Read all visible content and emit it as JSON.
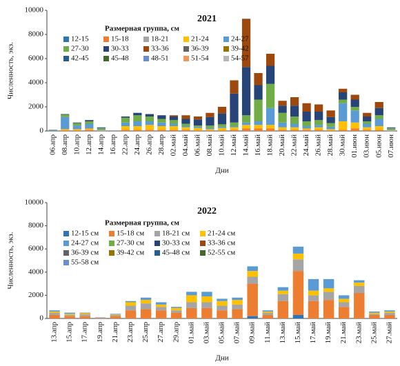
{
  "chart_data": [
    {
      "type": "stacked_bar",
      "title": "2021",
      "legend_title": "Размерная группа, см",
      "x_label": "Дни",
      "y_label": "Численность, экз.",
      "categories": [
        "06.апр",
        "08.апр",
        "10.апр",
        "12.апр",
        "14.апр",
        "16.апр",
        "22.апр",
        "24.апр",
        "26.апр",
        "28.апр",
        "02.май",
        "04.май",
        "06.май",
        "08.май",
        "10.май",
        "12.май",
        "14.май",
        "16.май",
        "18.май",
        "20.май",
        "22.май",
        "24.май",
        "26.май",
        "28.май",
        "30.май",
        "01.июн",
        "03.июн",
        "05.июн",
        "07.июн"
      ],
      "ylim": [
        0,
        10000
      ],
      "yticks": [
        0,
        2000,
        4000,
        6000,
        8000,
        10000
      ],
      "series": [
        {
          "name": "12-15",
          "color": "#2e75b6",
          "values": [
            0,
            0,
            0,
            0,
            0,
            0,
            0,
            0,
            0,
            0,
            0,
            0,
            0,
            0,
            0,
            0,
            0,
            0,
            0,
            0,
            0,
            0,
            0,
            0,
            0,
            0,
            0,
            0,
            0
          ]
        },
        {
          "name": "15-18",
          "color": "#ed7d31",
          "values": [
            0,
            50,
            50,
            100,
            0,
            0,
            100,
            100,
            100,
            100,
            100,
            100,
            50,
            50,
            50,
            100,
            200,
            200,
            200,
            100,
            100,
            100,
            100,
            50,
            100,
            200,
            100,
            100,
            0
          ]
        },
        {
          "name": "18-21",
          "color": "#a5a5a5",
          "values": [
            0,
            0,
            0,
            0,
            0,
            0,
            0,
            0,
            0,
            0,
            0,
            0,
            0,
            0,
            0,
            0,
            0,
            0,
            0,
            0,
            0,
            0,
            0,
            0,
            0,
            0,
            0,
            0,
            0
          ]
        },
        {
          "name": "21-24",
          "color": "#ffc000",
          "values": [
            0,
            100,
            100,
            100,
            50,
            0,
            300,
            300,
            400,
            300,
            300,
            200,
            200,
            100,
            200,
            200,
            300,
            300,
            300,
            200,
            200,
            100,
            200,
            100,
            700,
            500,
            200,
            300,
            50
          ]
        },
        {
          "name": "24-27",
          "color": "#5b9bd5",
          "values": [
            50,
            1000,
            300,
            400,
            100,
            0,
            300,
            400,
            300,
            300,
            200,
            100,
            100,
            100,
            100,
            100,
            200,
            300,
            1400,
            400,
            300,
            200,
            200,
            200,
            1500,
            1000,
            300,
            600,
            100
          ]
        },
        {
          "name": "27-30",
          "color": "#70ad47",
          "values": [
            30,
            200,
            200,
            200,
            100,
            0,
            400,
            500,
            400,
            300,
            300,
            200,
            100,
            200,
            200,
            300,
            600,
            1800,
            2000,
            800,
            600,
            400,
            400,
            300,
            300,
            300,
            200,
            300,
            100
          ]
        },
        {
          "name": "30-33",
          "color": "#264478",
          "values": [
            20,
            50,
            50,
            100,
            50,
            0,
            100,
            200,
            200,
            300,
            300,
            400,
            500,
            700,
            900,
            2400,
            4000,
            1200,
            1500,
            600,
            900,
            800,
            700,
            500,
            600,
            600,
            400,
            600,
            50
          ]
        },
        {
          "name": "33-36",
          "color": "#9e480e",
          "values": [
            0,
            0,
            0,
            0,
            0,
            0,
            0,
            0,
            0,
            0,
            100,
            300,
            250,
            350,
            550,
            1100,
            4000,
            1000,
            1000,
            400,
            700,
            700,
            600,
            550,
            300,
            400,
            300,
            500,
            0
          ]
        },
        {
          "name": "36-39",
          "color": "#636363",
          "values": [
            0,
            0,
            0,
            0,
            0,
            0,
            0,
            0,
            0,
            0,
            0,
            0,
            0,
            0,
            0,
            0,
            0,
            0,
            0,
            0,
            0,
            0,
            0,
            0,
            0,
            0,
            0,
            0,
            0
          ]
        },
        {
          "name": "39-42",
          "color": "#997300",
          "values": [
            0,
            0,
            0,
            0,
            0,
            0,
            0,
            0,
            0,
            0,
            0,
            0,
            0,
            0,
            0,
            0,
            0,
            0,
            0,
            0,
            0,
            0,
            0,
            0,
            0,
            0,
            0,
            0,
            0
          ]
        },
        {
          "name": "42-45",
          "color": "#255e91",
          "values": [
            0,
            0,
            0,
            0,
            0,
            0,
            0,
            0,
            0,
            0,
            0,
            0,
            0,
            0,
            0,
            0,
            0,
            0,
            0,
            0,
            0,
            0,
            0,
            0,
            0,
            0,
            0,
            0,
            0
          ]
        },
        {
          "name": "45-48",
          "color": "#43682b",
          "values": [
            0,
            0,
            0,
            0,
            0,
            0,
            0,
            0,
            0,
            0,
            0,
            0,
            0,
            0,
            0,
            0,
            0,
            0,
            0,
            0,
            0,
            0,
            0,
            0,
            0,
            0,
            0,
            0,
            0
          ]
        },
        {
          "name": "48-51",
          "color": "#698ed0",
          "values": [
            0,
            0,
            0,
            0,
            0,
            0,
            0,
            0,
            0,
            0,
            0,
            0,
            0,
            0,
            0,
            0,
            0,
            0,
            0,
            0,
            0,
            0,
            0,
            0,
            0,
            0,
            0,
            0,
            0
          ]
        },
        {
          "name": "51-54",
          "color": "#f1975a",
          "values": [
            0,
            0,
            0,
            0,
            0,
            0,
            0,
            0,
            0,
            0,
            0,
            0,
            0,
            0,
            0,
            0,
            0,
            0,
            0,
            0,
            0,
            0,
            0,
            0,
            0,
            0,
            0,
            0,
            0
          ]
        },
        {
          "name": "54-57",
          "color": "#b7b7b7",
          "values": [
            0,
            0,
            0,
            0,
            0,
            0,
            0,
            0,
            0,
            0,
            0,
            0,
            0,
            0,
            0,
            0,
            0,
            0,
            0,
            0,
            0,
            0,
            0,
            0,
            0,
            0,
            0,
            0,
            0
          ]
        }
      ]
    },
    {
      "type": "stacked_bar",
      "title": "2022",
      "legend_title": "Размерная группа, см",
      "x_label": "Дни",
      "y_label": "Численность, экз.",
      "categories": [
        "13.апр",
        "15.апр",
        "17.апр",
        "19.апр",
        "21.апр",
        "23.апр",
        "25.апр",
        "27.апр",
        "29.апр",
        "01.май",
        "03.май",
        "05.май",
        "07.май",
        "09.май",
        "11.май",
        "13.май",
        "15.май",
        "17.май",
        "19.май",
        "21.май",
        "23.май",
        "25.май",
        "27.май"
      ],
      "ylim": [
        0,
        10000
      ],
      "yticks": [
        0,
        2000,
        4000,
        6000,
        8000,
        10000
      ],
      "series": [
        {
          "name": "12-15 см",
          "color": "#2e75b6",
          "values": [
            0,
            0,
            0,
            0,
            0,
            0,
            0,
            0,
            0,
            0,
            0,
            0,
            0,
            200,
            0,
            0,
            300,
            0,
            0,
            0,
            0,
            0,
            0
          ]
        },
        {
          "name": "15-18 см",
          "color": "#ed7d31",
          "values": [
            300,
            200,
            200,
            50,
            200,
            700,
            800,
            700,
            500,
            900,
            900,
            700,
            800,
            2800,
            300,
            1500,
            3800,
            1500,
            1600,
            1000,
            2200,
            300,
            300
          ]
        },
        {
          "name": "18-21 см",
          "color": "#a5a5a5",
          "values": [
            200,
            100,
            150,
            30,
            100,
            400,
            500,
            300,
            200,
            500,
            500,
            400,
            400,
            600,
            200,
            600,
            1000,
            500,
            700,
            400,
            600,
            100,
            200
          ]
        },
        {
          "name": "21-24 см",
          "color": "#ffc000",
          "values": [
            100,
            100,
            100,
            0,
            50,
            300,
            300,
            200,
            200,
            600,
            500,
            400,
            400,
            500,
            100,
            300,
            500,
            400,
            300,
            300,
            300,
            100,
            100
          ]
        },
        {
          "name": "24-27 см",
          "color": "#5b9bd5",
          "values": [
            100,
            100,
            50,
            20,
            50,
            100,
            200,
            200,
            100,
            300,
            400,
            200,
            200,
            400,
            100,
            300,
            600,
            1000,
            800,
            300,
            200,
            100,
            100
          ]
        },
        {
          "name": "27-30 см",
          "color": "#70ad47",
          "values": [
            0,
            0,
            0,
            0,
            0,
            0,
            0,
            0,
            0,
            0,
            0,
            0,
            0,
            0,
            0,
            0,
            0,
            0,
            0,
            0,
            0,
            0,
            0
          ]
        },
        {
          "name": "30-33 см",
          "color": "#264478",
          "values": [
            0,
            0,
            0,
            0,
            0,
            0,
            0,
            0,
            0,
            0,
            0,
            0,
            0,
            0,
            0,
            0,
            0,
            0,
            0,
            0,
            0,
            0,
            0
          ]
        },
        {
          "name": "33-36 см",
          "color": "#9e480e",
          "values": [
            0,
            0,
            0,
            0,
            0,
            0,
            0,
            0,
            0,
            0,
            0,
            0,
            0,
            0,
            0,
            0,
            0,
            0,
            0,
            0,
            0,
            0,
            0
          ]
        },
        {
          "name": "36-39 см",
          "color": "#636363",
          "values": [
            0,
            0,
            0,
            0,
            0,
            0,
            0,
            0,
            0,
            0,
            0,
            0,
            0,
            0,
            0,
            0,
            0,
            0,
            0,
            0,
            0,
            0,
            0
          ]
        },
        {
          "name": "39-42 см",
          "color": "#997300",
          "values": [
            0,
            0,
            0,
            0,
            0,
            0,
            0,
            0,
            0,
            0,
            0,
            0,
            0,
            0,
            0,
            0,
            0,
            0,
            0,
            0,
            0,
            0,
            0
          ]
        },
        {
          "name": "45-48 см",
          "color": "#255e91",
          "values": [
            0,
            0,
            0,
            0,
            0,
            0,
            0,
            0,
            0,
            0,
            0,
            0,
            0,
            0,
            0,
            0,
            0,
            0,
            0,
            0,
            0,
            0,
            0
          ]
        },
        {
          "name": "52-55 см",
          "color": "#43682b",
          "values": [
            0,
            0,
            0,
            0,
            0,
            0,
            0,
            0,
            0,
            0,
            0,
            0,
            0,
            0,
            0,
            0,
            0,
            0,
            0,
            0,
            0,
            0,
            0
          ]
        },
        {
          "name": "55-58 см",
          "color": "#698ed0",
          "values": [
            0,
            0,
            0,
            0,
            0,
            0,
            0,
            0,
            0,
            0,
            0,
            0,
            0,
            0,
            0,
            0,
            0,
            0,
            0,
            0,
            0,
            0,
            0
          ]
        }
      ]
    }
  ]
}
